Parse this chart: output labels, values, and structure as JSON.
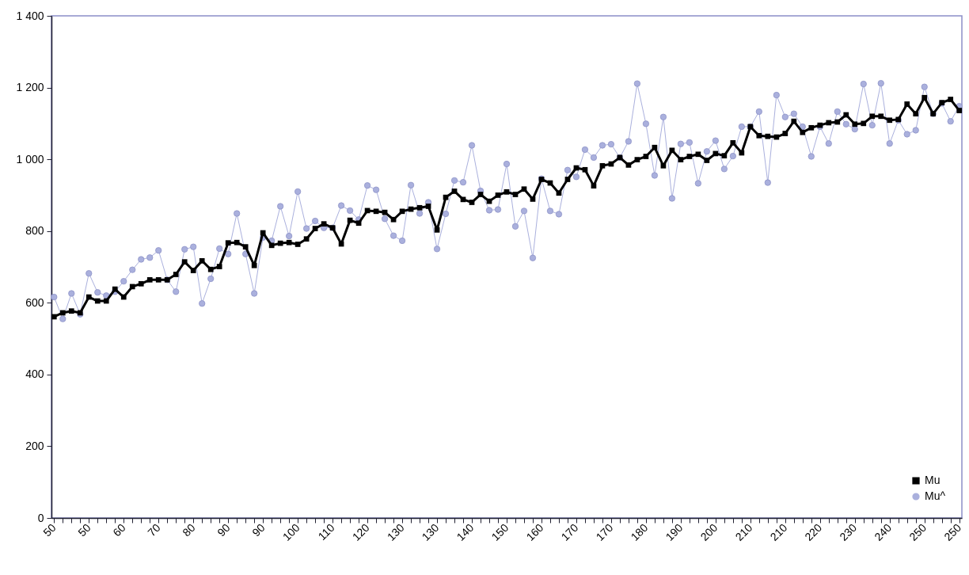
{
  "chart_data": {
    "type": "line",
    "categories": [
      "50",
      null,
      null,
      null,
      "50",
      null,
      null,
      null,
      "60",
      null,
      null,
      null,
      "70",
      null,
      null,
      null,
      "80",
      null,
      null,
      null,
      "90",
      null,
      null,
      null,
      "90",
      null,
      null,
      null,
      "100",
      null,
      null,
      null,
      "110",
      null,
      null,
      null,
      "120",
      null,
      null,
      null,
      "130",
      null,
      null,
      null,
      "130",
      null,
      null,
      null,
      "140",
      null,
      null,
      null,
      "150",
      null,
      null,
      null,
      "160",
      null,
      null,
      null,
      "170",
      null,
      null,
      null,
      "170",
      null,
      null,
      null,
      "180",
      null,
      null,
      null,
      "190",
      null,
      null,
      null,
      "200",
      null,
      null,
      null,
      "210",
      null,
      null,
      null,
      "210",
      null,
      null,
      null,
      "220",
      null,
      null,
      null,
      "230",
      null,
      null,
      null,
      "240",
      null,
      null,
      null,
      "250",
      null,
      null,
      null,
      "250"
    ],
    "series": [
      {
        "name": "Mu",
        "color": "#000000",
        "marker": "square",
        "values": [
          561,
          572,
          577,
          572,
          616,
          605,
          605,
          638,
          616,
          645,
          653,
          664,
          664,
          664,
          679,
          714,
          690,
          717,
          693,
          701,
          767,
          768,
          756,
          704,
          795,
          760,
          766,
          768,
          763,
          778,
          807,
          820,
          809,
          764,
          830,
          822,
          857,
          855,
          852,
          832,
          855,
          861,
          865,
          869,
          803,
          894,
          911,
          888,
          880,
          902,
          883,
          900,
          909,
          902,
          917,
          889,
          944,
          934,
          906,
          944,
          976,
          971,
          926,
          982,
          987,
          1005,
          984,
          999,
          1008,
          1033,
          982,
          1025,
          999,
          1008,
          1014,
          997,
          1016,
          1010,
          1046,
          1018,
          1091,
          1066,
          1064,
          1062,
          1072,
          1106,
          1075,
          1088,
          1095,
          1102,
          1104,
          1124,
          1098,
          1100,
          1120,
          1120,
          1109,
          1111,
          1154,
          1127,
          1172,
          1127,
          1158,
          1167,
          1136
        ]
      },
      {
        "name": "Mu^",
        "color": "#aab0dd",
        "marker": "circle",
        "values": [
          616,
          555,
          626,
          568,
          682,
          629,
          620,
          631,
          660,
          692,
          721,
          726,
          746,
          664,
          631,
          749,
          756,
          598,
          667,
          751,
          736,
          849,
          736,
          626,
          782,
          773,
          869,
          786,
          910,
          807,
          828,
          809,
          809,
          871,
          857,
          832,
          927,
          915,
          834,
          787,
          773,
          928,
          849,
          880,
          750,
          848,
          941,
          936,
          1039,
          912,
          858,
          860,
          987,
          813,
          856,
          725,
          946,
          856,
          847,
          970,
          951,
          1027,
          1005,
          1039,
          1042,
          1005,
          1050,
          1211,
          1099,
          955,
          1118,
          891,
          1043,
          1047,
          933,
          1022,
          1052,
          973,
          1009,
          1091,
          1091,
          1133,
          935,
          1179,
          1118,
          1127,
          1091,
          1008,
          1091,
          1044,
          1133,
          1098,
          1084,
          1210,
          1095,
          1212,
          1044,
          1109,
          1070,
          1081,
          1202,
          1127,
          1156,
          1106,
          1148
        ]
      }
    ],
    "ylim": [
      0,
      1400
    ],
    "yticks": [
      0,
      200,
      400,
      600,
      800,
      {
        "value": 1000,
        "label": "1 000"
      },
      {
        "value": 1200,
        "label": "1 200"
      },
      {
        "value": 1400,
        "label": "1 400"
      }
    ],
    "grid": false,
    "legend": "bottom right"
  }
}
